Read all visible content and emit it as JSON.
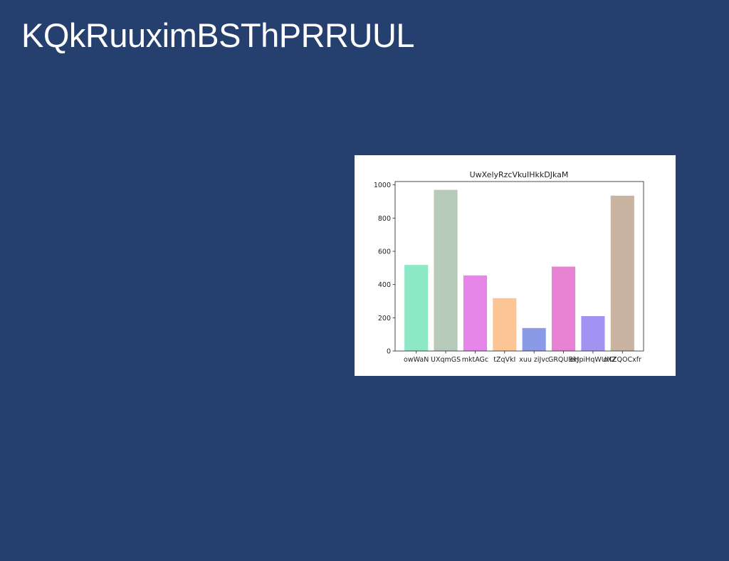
{
  "page": {
    "title": "KQkRuuximBSThPRRUUL",
    "background_color": "#253f6f"
  },
  "chart_data": {
    "type": "bar",
    "title": "UwXelyRzcVkuIHkkDJkaM",
    "xlabel": "",
    "ylabel": "",
    "categories": [
      "owWaN",
      "UXqmGS",
      "mktAGc",
      "tZqVkI",
      "xuu ziJvc",
      "GRQUBkJ",
      "eHpiHqWUHZ",
      "oXZQOCxfr"
    ],
    "values": [
      518,
      970,
      455,
      318,
      138,
      508,
      210,
      935
    ],
    "colors": [
      "#8de8c6",
      "#b7c9b8",
      "#e686e8",
      "#fbc596",
      "#8b9ae6",
      "#e783d2",
      "#a293f3",
      "#c9b3a1"
    ],
    "ylim": [
      0,
      1020
    ],
    "yticks": [
      0,
      200,
      400,
      600,
      800,
      1000
    ],
    "grid": false,
    "legend": "none"
  }
}
